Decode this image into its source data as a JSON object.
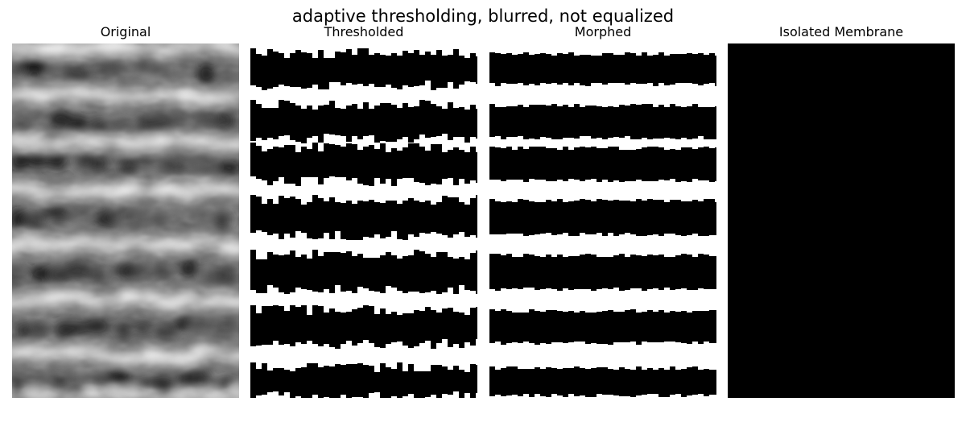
{
  "figure": {
    "title": "adaptive thresholding, blurred, not equalized",
    "panels": [
      {
        "title": "Original"
      },
      {
        "title": "Thresholded"
      },
      {
        "title": "Morphed"
      },
      {
        "title": "Isolated Membrane"
      }
    ]
  },
  "colors": {
    "background": "#ffffff",
    "ink": "#000000",
    "membrane_gray": "#8a8a8a",
    "membrane_light": "#b0b0b0",
    "original_dark": "#1e1e1e",
    "original_mid": "#6a6a6a",
    "original_light": "#e6e6e6"
  }
}
